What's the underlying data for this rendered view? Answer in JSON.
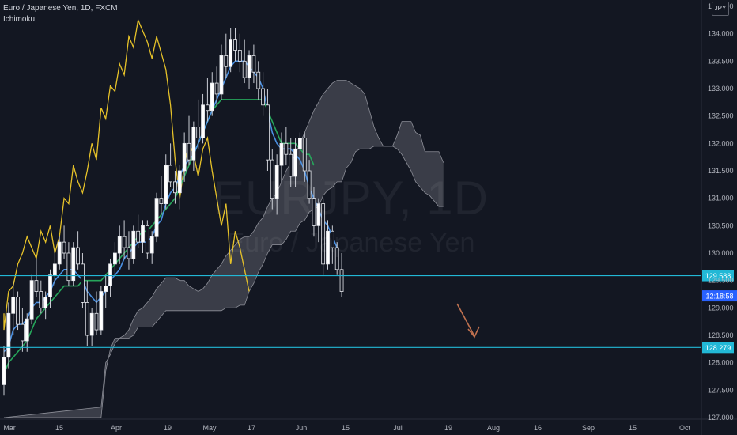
{
  "header": {
    "symbol_line": "Euro / Japanese Yen, 1D, FXCM",
    "indicator": "Ichimoku",
    "currency_badge": "JPY"
  },
  "watermark": {
    "ticker": "EURJPY, 1D",
    "name": "Euro / Japanese Yen"
  },
  "colors": {
    "background": "#131722",
    "up_candle": "#ffffff",
    "down_candle": "#ffffff",
    "conversion_line": "#4a90e2",
    "base_line": "#26a65b",
    "lagging_span": "#e6c229",
    "cloud_fill": "rgba(200,200,210,0.22)",
    "cloud_border": "#8e9099",
    "horizontal_line": "#22b8d6",
    "arrow": "#c0714f",
    "axis_text": "#b2b5be"
  },
  "chart_data": {
    "type": "candlestick",
    "x_labels": [
      "Mar",
      "15",
      "Apr",
      "19",
      "May",
      "17",
      "Jun",
      "15",
      "Jul",
      "19",
      "Aug",
      "16",
      "Sep",
      "15",
      "Oct"
    ],
    "y_ticks": [
      "127.000",
      "127.500",
      "128.000",
      "128.500",
      "129.000",
      "129.500",
      "130.000",
      "130.500",
      "131.000",
      "131.500",
      "132.000",
      "132.500",
      "133.000",
      "133.500",
      "134.000",
      "134.500"
    ],
    "ylim": [
      127.0,
      134.5
    ],
    "levels": [
      {
        "label": "129.588",
        "value": 129.588
      },
      {
        "label": "128.279",
        "value": 128.279
      }
    ],
    "countdown_label": "12:18:58",
    "countdown_price": 129.22,
    "candles": [
      {
        "o": 127.6,
        "h": 128.3,
        "l": 127.4,
        "c": 128.1
      },
      {
        "o": 128.1,
        "h": 129.1,
        "l": 127.9,
        "c": 128.9
      },
      {
        "o": 128.9,
        "h": 129.5,
        "l": 128.5,
        "c": 129.2
      },
      {
        "o": 129.2,
        "h": 129.3,
        "l": 128.6,
        "c": 128.7
      },
      {
        "o": 128.7,
        "h": 129.0,
        "l": 128.2,
        "c": 128.4
      },
      {
        "o": 128.4,
        "h": 128.9,
        "l": 128.2,
        "c": 128.8
      },
      {
        "o": 128.8,
        "h": 129.6,
        "l": 128.7,
        "c": 129.5
      },
      {
        "o": 129.5,
        "h": 129.9,
        "l": 129.2,
        "c": 129.3
      },
      {
        "o": 129.3,
        "h": 129.5,
        "l": 128.9,
        "c": 129.0
      },
      {
        "o": 129.0,
        "h": 129.3,
        "l": 128.8,
        "c": 129.2
      },
      {
        "o": 129.2,
        "h": 129.7,
        "l": 129.0,
        "c": 129.6
      },
      {
        "o": 129.6,
        "h": 130.1,
        "l": 129.4,
        "c": 129.8
      },
      {
        "o": 129.8,
        "h": 130.3,
        "l": 129.7,
        "c": 130.2
      },
      {
        "o": 130.2,
        "h": 130.5,
        "l": 129.9,
        "c": 130.0
      },
      {
        "o": 130.0,
        "h": 130.2,
        "l": 129.4,
        "c": 129.5
      },
      {
        "o": 129.5,
        "h": 130.2,
        "l": 129.4,
        "c": 130.1
      },
      {
        "o": 130.1,
        "h": 130.4,
        "l": 129.7,
        "c": 129.8
      },
      {
        "o": 129.8,
        "h": 130.0,
        "l": 129.0,
        "c": 129.1
      },
      {
        "o": 129.1,
        "h": 129.5,
        "l": 128.3,
        "c": 128.5
      },
      {
        "o": 128.5,
        "h": 129.0,
        "l": 128.3,
        "c": 128.9
      },
      {
        "o": 128.9,
        "h": 129.3,
        "l": 128.5,
        "c": 128.6
      },
      {
        "o": 128.6,
        "h": 129.4,
        "l": 128.5,
        "c": 129.3
      },
      {
        "o": 129.3,
        "h": 129.6,
        "l": 129.0,
        "c": 129.4
      },
      {
        "o": 129.4,
        "h": 129.9,
        "l": 129.2,
        "c": 129.8
      },
      {
        "o": 129.8,
        "h": 130.2,
        "l": 129.6,
        "c": 130.0
      },
      {
        "o": 130.0,
        "h": 130.5,
        "l": 129.8,
        "c": 130.3
      },
      {
        "o": 130.3,
        "h": 130.6,
        "l": 129.9,
        "c": 130.1
      },
      {
        "o": 130.1,
        "h": 130.4,
        "l": 129.7,
        "c": 129.9
      },
      {
        "o": 129.9,
        "h": 130.5,
        "l": 129.8,
        "c": 130.4
      },
      {
        "o": 130.4,
        "h": 130.7,
        "l": 130.1,
        "c": 130.2
      },
      {
        "o": 130.2,
        "h": 130.6,
        "l": 130.0,
        "c": 130.5
      },
      {
        "o": 130.5,
        "h": 130.6,
        "l": 129.9,
        "c": 130.0
      },
      {
        "o": 130.0,
        "h": 130.4,
        "l": 129.8,
        "c": 130.3
      },
      {
        "o": 130.3,
        "h": 131.1,
        "l": 130.2,
        "c": 131.0
      },
      {
        "o": 131.0,
        "h": 131.4,
        "l": 130.7,
        "c": 130.9
      },
      {
        "o": 130.9,
        "h": 131.8,
        "l": 130.8,
        "c": 131.6
      },
      {
        "o": 131.6,
        "h": 132.0,
        "l": 131.2,
        "c": 131.3
      },
      {
        "o": 131.3,
        "h": 131.5,
        "l": 130.9,
        "c": 131.1
      },
      {
        "o": 131.1,
        "h": 131.6,
        "l": 130.8,
        "c": 131.5
      },
      {
        "o": 131.5,
        "h": 132.2,
        "l": 131.3,
        "c": 132.0
      },
      {
        "o": 132.0,
        "h": 132.5,
        "l": 131.6,
        "c": 131.7
      },
      {
        "o": 131.7,
        "h": 132.4,
        "l": 131.5,
        "c": 132.3
      },
      {
        "o": 132.3,
        "h": 132.8,
        "l": 131.9,
        "c": 132.1
      },
      {
        "o": 132.1,
        "h": 132.9,
        "l": 132.0,
        "c": 132.7
      },
      {
        "o": 132.7,
        "h": 133.2,
        "l": 132.4,
        "c": 132.6
      },
      {
        "o": 132.6,
        "h": 133.3,
        "l": 132.5,
        "c": 133.1
      },
      {
        "o": 133.1,
        "h": 133.4,
        "l": 132.7,
        "c": 132.9
      },
      {
        "o": 132.9,
        "h": 133.8,
        "l": 132.8,
        "c": 133.6
      },
      {
        "o": 133.6,
        "h": 134.0,
        "l": 133.2,
        "c": 133.4
      },
      {
        "o": 133.4,
        "h": 134.1,
        "l": 133.3,
        "c": 133.9
      },
      {
        "o": 133.9,
        "h": 134.1,
        "l": 133.5,
        "c": 133.7
      },
      {
        "o": 133.7,
        "h": 134.0,
        "l": 133.3,
        "c": 133.5
      },
      {
        "o": 133.5,
        "h": 133.9,
        "l": 133.1,
        "c": 133.2
      },
      {
        "o": 133.2,
        "h": 133.7,
        "l": 133.0,
        "c": 133.6
      },
      {
        "o": 133.6,
        "h": 133.8,
        "l": 133.1,
        "c": 133.3
      },
      {
        "o": 133.3,
        "h": 133.5,
        "l": 132.8,
        "c": 133.0
      },
      {
        "o": 133.0,
        "h": 133.3,
        "l": 132.5,
        "c": 132.7
      },
      {
        "o": 132.7,
        "h": 133.0,
        "l": 131.5,
        "c": 131.7
      },
      {
        "o": 131.7,
        "h": 131.9,
        "l": 130.8,
        "c": 131.0
      },
      {
        "o": 131.0,
        "h": 131.8,
        "l": 130.7,
        "c": 131.6
      },
      {
        "o": 131.6,
        "h": 132.2,
        "l": 131.3,
        "c": 132.0
      },
      {
        "o": 132.0,
        "h": 132.3,
        "l": 131.6,
        "c": 131.8
      },
      {
        "o": 131.8,
        "h": 132.1,
        "l": 131.2,
        "c": 131.4
      },
      {
        "o": 131.4,
        "h": 132.1,
        "l": 131.2,
        "c": 131.9
      },
      {
        "o": 131.9,
        "h": 132.2,
        "l": 131.6,
        "c": 132.1
      },
      {
        "o": 132.1,
        "h": 132.2,
        "l": 131.3,
        "c": 131.5
      },
      {
        "o": 131.5,
        "h": 131.7,
        "l": 130.9,
        "c": 131.0
      },
      {
        "o": 131.0,
        "h": 131.2,
        "l": 130.3,
        "c": 130.5
      },
      {
        "o": 130.5,
        "h": 131.0,
        "l": 130.2,
        "c": 130.9
      },
      {
        "o": 130.9,
        "h": 131.0,
        "l": 129.6,
        "c": 129.8
      },
      {
        "o": 129.8,
        "h": 130.6,
        "l": 129.7,
        "c": 130.4
      },
      {
        "o": 130.4,
        "h": 130.5,
        "l": 129.8,
        "c": 130.1
      },
      {
        "o": 130.1,
        "h": 130.2,
        "l": 129.6,
        "c": 129.7
      },
      {
        "o": 129.7,
        "h": 130.0,
        "l": 129.2,
        "c": 129.3
      }
    ],
    "conversion_line": [
      128.2,
      128.3,
      128.6,
      128.7,
      128.7,
      128.8,
      129.0,
      129.1,
      129.1,
      129.2,
      129.3,
      129.5,
      129.6,
      129.7,
      129.7,
      129.7,
      129.6,
      129.5,
      129.3,
      129.2,
      129.1,
      129.2,
      129.3,
      129.5,
      129.6,
      129.7,
      129.9,
      130.0,
      130.1,
      130.2,
      130.2,
      130.2,
      130.3,
      130.5,
      130.6,
      130.9,
      131.1,
      131.2,
      131.4,
      131.6,
      131.7,
      131.8,
      132.0,
      132.2,
      132.4,
      132.6,
      132.8,
      133.0,
      133.2,
      133.4,
      133.5,
      133.5,
      133.5,
      133.4,
      133.3,
      133.2,
      133.0,
      132.6,
      132.2,
      132.0,
      131.9,
      131.9,
      131.9,
      131.8,
      131.7,
      131.5,
      131.2,
      131.0,
      130.8,
      130.6,
      130.5,
      130.3,
      130.1
    ],
    "base_line": [
      127.8,
      128.0,
      128.1,
      128.2,
      128.3,
      128.4,
      128.6,
      128.8,
      128.9,
      129.0,
      129.1,
      129.2,
      129.3,
      129.4,
      129.4,
      129.4,
      129.4,
      129.5,
      129.5,
      129.5,
      129.5,
      129.5,
      129.6,
      129.7,
      129.8,
      129.9,
      130.0,
      130.1,
      130.2,
      130.3,
      130.4,
      130.4,
      130.5,
      130.6,
      130.7,
      130.8,
      130.9,
      131.0,
      131.2,
      131.4,
      131.6,
      131.8,
      132.0,
      132.2,
      132.4,
      132.6,
      132.7,
      132.8,
      132.8,
      132.8,
      132.8,
      132.8,
      132.8,
      132.8,
      132.8,
      132.8,
      132.8,
      132.6,
      132.4,
      132.2,
      132.0,
      132.0,
      132.0,
      132.0,
      131.9,
      131.8,
      131.8,
      131.6
    ]
  }
}
